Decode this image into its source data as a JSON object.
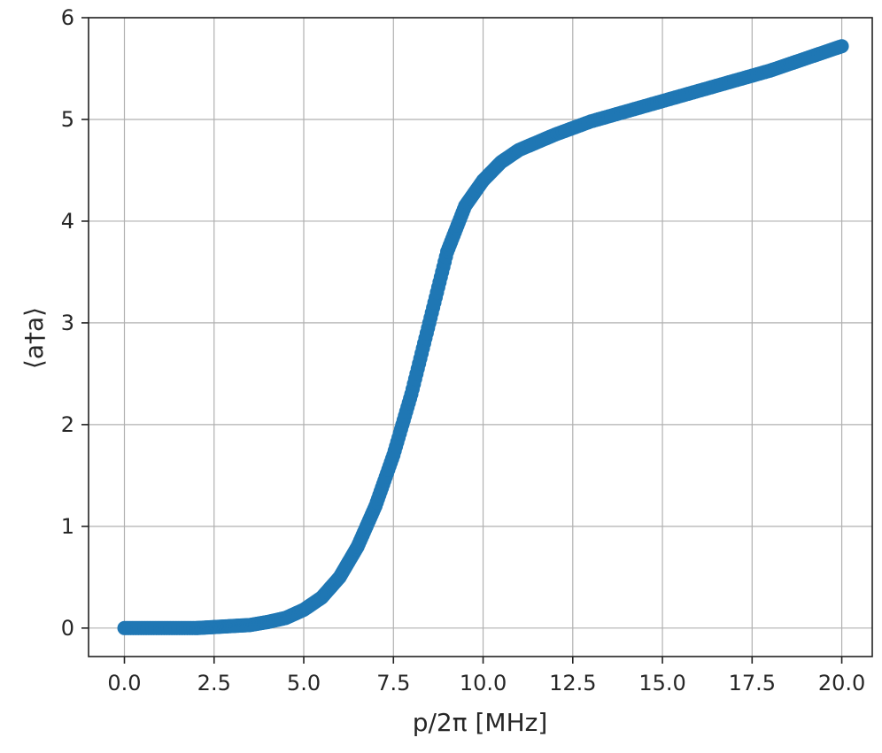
{
  "chart_data": {
    "type": "scatter",
    "title": "",
    "xlabel": "p/2π [MHz]",
    "ylabel": "⟨a†a⟩",
    "xlim": [
      -1.0,
      20.85
    ],
    "ylim": [
      -0.28,
      6.0
    ],
    "x_ticks": [
      "0.0",
      "2.5",
      "5.0",
      "7.5",
      "10.0",
      "12.5",
      "15.0",
      "17.5",
      "20.0"
    ],
    "y_ticks": [
      "0",
      "1",
      "2",
      "3",
      "4",
      "5",
      "6"
    ],
    "grid": true,
    "legend": "none",
    "marker": "circle",
    "color": "#1f77b4",
    "series": [
      {
        "x": [
          0.0,
          1.0,
          2.0,
          2.5,
          3.0,
          3.5,
          4.0,
          4.5,
          5.0,
          5.5,
          6.0,
          6.5,
          7.0,
          7.5,
          8.0,
          8.5,
          9.0,
          9.5,
          10.0,
          10.5,
          11.0,
          12.0,
          13.0,
          14.0,
          15.0,
          16.0,
          17.0,
          18.0,
          19.0,
          20.0
        ],
        "y": [
          0.0,
          0.0,
          0.0,
          0.01,
          0.02,
          0.03,
          0.06,
          0.1,
          0.18,
          0.3,
          0.5,
          0.8,
          1.2,
          1.7,
          2.3,
          3.0,
          3.7,
          4.15,
          4.4,
          4.58,
          4.7,
          4.85,
          4.98,
          5.08,
          5.18,
          5.28,
          5.38,
          5.48,
          5.6,
          5.72
        ]
      }
    ]
  }
}
